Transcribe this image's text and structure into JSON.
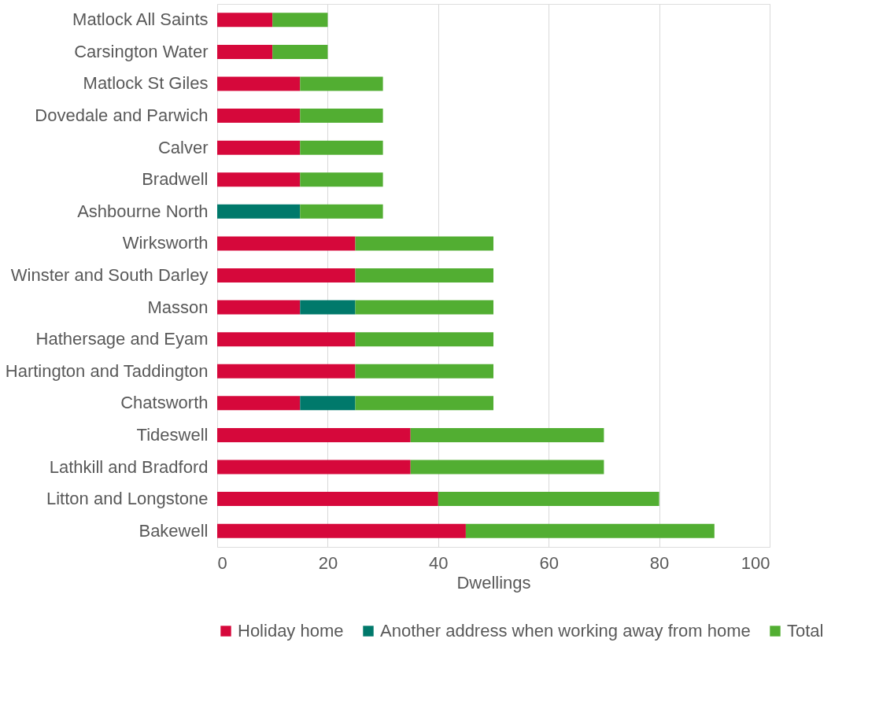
{
  "chart_data": {
    "type": "bar",
    "orientation": "horizontal",
    "stacked": true,
    "xlabel": "Dwellings",
    "categories": [
      "Matlock All Saints",
      "Carsington Water",
      "Matlock St Giles",
      "Dovedale and Parwich",
      "Calver",
      "Bradwell",
      "Ashbourne North",
      "Wirksworth",
      "Winster and South Darley",
      "Masson",
      "Hathersage and Eyam",
      "Hartington and Taddington",
      "Chatsworth",
      "Tideswell",
      "Lathkill and Bradford",
      "Litton and Longstone",
      "Bakewell"
    ],
    "series": [
      {
        "name": "Holiday home",
        "color": "#d6083b",
        "values": [
          10,
          10,
          15,
          15,
          15,
          15,
          0,
          25,
          25,
          15,
          25,
          25,
          15,
          35,
          35,
          40,
          45
        ]
      },
      {
        "name": "Another address when working away from home",
        "color": "#00796b",
        "values": [
          0,
          0,
          0,
          0,
          0,
          0,
          15,
          0,
          0,
          10,
          0,
          0,
          10,
          0,
          0,
          0,
          0
        ]
      },
      {
        "name": "Total",
        "color": "#52ae32",
        "values": [
          10,
          10,
          15,
          15,
          15,
          15,
          15,
          25,
          25,
          25,
          25,
          25,
          25,
          35,
          35,
          40,
          45
        ]
      }
    ],
    "xlim": [
      0,
      100
    ],
    "xticks": [
      0,
      20,
      40,
      60,
      80,
      100
    ],
    "grid": "x",
    "legend": "bottom"
  }
}
